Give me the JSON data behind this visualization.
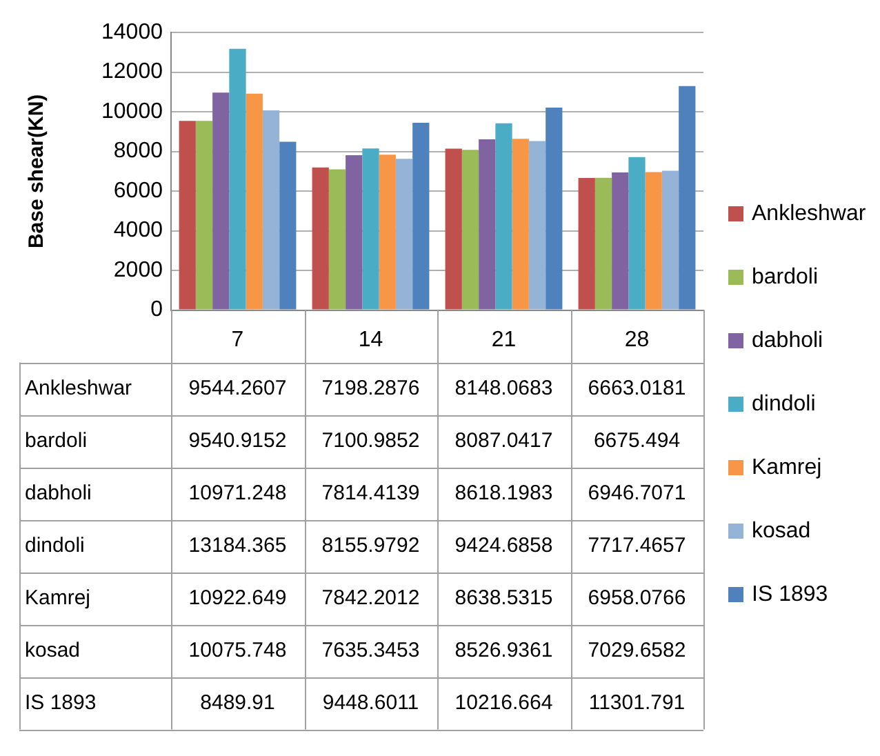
{
  "chart_data": {
    "type": "bar",
    "ylabel": "Base shear(KN)",
    "categories": [
      "7",
      "14",
      "21",
      "28"
    ],
    "series": [
      {
        "name": "Ankleshwar",
        "color": "#c0504d",
        "values": [
          9544.2607,
          7198.2876,
          8148.0683,
          6663.0181
        ]
      },
      {
        "name": "bardoli",
        "color": "#9bbb59",
        "values": [
          9540.9152,
          7100.9852,
          8087.0417,
          6675.494
        ]
      },
      {
        "name": "dabholi",
        "color": "#8064a2",
        "values": [
          10971.248,
          7814.4139,
          8618.1983,
          6946.7071
        ]
      },
      {
        "name": "dindoli",
        "color": "#4bacc6",
        "values": [
          13184.365,
          8155.9792,
          9424.6858,
          7717.4657
        ]
      },
      {
        "name": "Kamrej",
        "color": "#f79646",
        "values": [
          10922.649,
          7842.2012,
          8638.5315,
          6958.0766
        ]
      },
      {
        "name": "kosad",
        "color": "#95b3d7",
        "values": [
          10075.748,
          7635.3453,
          8526.9361,
          7029.6582
        ]
      },
      {
        "name": "IS 1893",
        "color": "#4f81bd",
        "values": [
          8489.91,
          9448.6011,
          10216.664,
          11301.791
        ]
      }
    ],
    "ylim": [
      0,
      14000
    ],
    "yticks": [
      0,
      2000,
      4000,
      6000,
      8000,
      10000,
      12000,
      14000
    ],
    "grid": "y",
    "legend": "right",
    "data_labels": true
  }
}
